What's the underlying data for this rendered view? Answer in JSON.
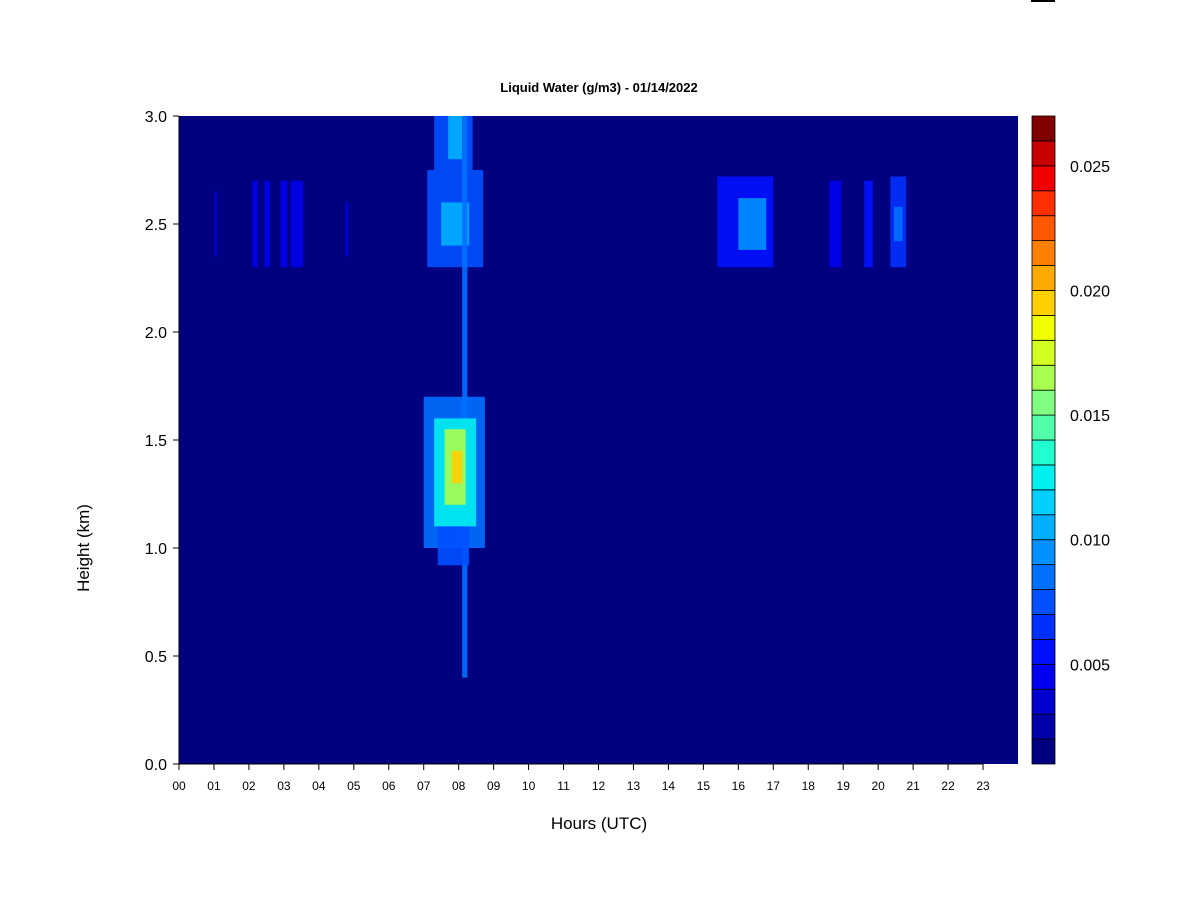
{
  "chart_data": {
    "type": "heatmap",
    "title": "Liquid Water (g/m3) - 01/14/2022",
    "xlabel": "Hours (UTC)",
    "ylabel": "Height (km)",
    "xlim": [
      0,
      24
    ],
    "ylim": [
      0,
      3.0
    ],
    "x_ticks": [
      "00",
      "01",
      "02",
      "03",
      "04",
      "05",
      "06",
      "07",
      "08",
      "09",
      "10",
      "11",
      "12",
      "13",
      "14",
      "15",
      "16",
      "17",
      "18",
      "19",
      "20",
      "21",
      "22",
      "23"
    ],
    "y_ticks": [
      "0.0",
      "0.5",
      "1.0",
      "1.5",
      "2.0",
      "2.5",
      "3.0"
    ],
    "colorbar": {
      "min": 0.001,
      "max": 0.027,
      "levels": 26,
      "ticks": [
        "0.005",
        "0.010",
        "0.015",
        "0.020",
        "0.025"
      ],
      "colors": [
        "#000080",
        "#0000a8",
        "#0000d0",
        "#0000f0",
        "#0010ff",
        "#0030ff",
        "#0050ff",
        "#0070ff",
        "#0090ff",
        "#00b0ff",
        "#00d0ff",
        "#00f0f0",
        "#20ffd0",
        "#50ffa8",
        "#80ff80",
        "#a8ff50",
        "#d0ff20",
        "#f0ff00",
        "#ffd000",
        "#ffa800",
        "#ff8000",
        "#ff5800",
        "#ff3000",
        "#f00000",
        "#c80000",
        "#800000"
      ]
    },
    "background_value": 0.001,
    "cloud_regions": [
      {
        "x": [
          1.0,
          1.08
        ],
        "y": [
          2.35,
          2.65
        ],
        "value": 0.003
      },
      {
        "x": [
          2.1,
          2.25
        ],
        "y": [
          2.3,
          2.7
        ],
        "value": 0.004
      },
      {
        "x": [
          2.45,
          2.6
        ],
        "y": [
          2.3,
          2.7
        ],
        "value": 0.004
      },
      {
        "x": [
          2.9,
          3.1
        ],
        "y": [
          2.3,
          2.7
        ],
        "value": 0.004
      },
      {
        "x": [
          3.2,
          3.55
        ],
        "y": [
          2.3,
          2.7
        ],
        "value": 0.004
      },
      {
        "x": [
          4.75,
          4.85
        ],
        "y": [
          2.35,
          2.6
        ],
        "value": 0.003
      },
      {
        "x": [
          7.1,
          8.7
        ],
        "y": [
          2.3,
          2.75
        ],
        "value": 0.007
      },
      {
        "x": [
          7.5,
          8.3
        ],
        "y": [
          2.4,
          2.6
        ],
        "value": 0.01
      },
      {
        "x": [
          7.3,
          8.4
        ],
        "y": [
          2.75,
          3.0
        ],
        "value": 0.007
      },
      {
        "x": [
          7.7,
          8.1
        ],
        "y": [
          2.8,
          3.0
        ],
        "value": 0.01
      },
      {
        "x": [
          8.1,
          8.25
        ],
        "y": [
          0.4,
          3.0
        ],
        "value": 0.008
      },
      {
        "x": [
          7.0,
          8.75
        ],
        "y": [
          1.0,
          1.7
        ],
        "value": 0.008
      },
      {
        "x": [
          7.3,
          8.5
        ],
        "y": [
          1.1,
          1.6
        ],
        "value": 0.012
      },
      {
        "x": [
          7.6,
          8.2
        ],
        "y": [
          1.2,
          1.55
        ],
        "value": 0.016
      },
      {
        "x": [
          7.8,
          8.1
        ],
        "y": [
          1.3,
          1.45
        ],
        "value": 0.019
      },
      {
        "x": [
          7.4,
          8.3
        ],
        "y": [
          0.92,
          1.1
        ],
        "value": 0.007
      },
      {
        "x": [
          15.4,
          17.0
        ],
        "y": [
          2.3,
          2.72
        ],
        "value": 0.005
      },
      {
        "x": [
          16.0,
          16.8
        ],
        "y": [
          2.38,
          2.62
        ],
        "value": 0.009
      },
      {
        "x": [
          18.6,
          18.95
        ],
        "y": [
          2.3,
          2.7
        ],
        "value": 0.004
      },
      {
        "x": [
          19.6,
          19.85
        ],
        "y": [
          2.3,
          2.7
        ],
        "value": 0.005
      },
      {
        "x": [
          20.35,
          20.8
        ],
        "y": [
          2.3,
          2.72
        ],
        "value": 0.006
      },
      {
        "x": [
          20.45,
          20.7
        ],
        "y": [
          2.42,
          2.58
        ],
        "value": 0.008
      }
    ]
  }
}
